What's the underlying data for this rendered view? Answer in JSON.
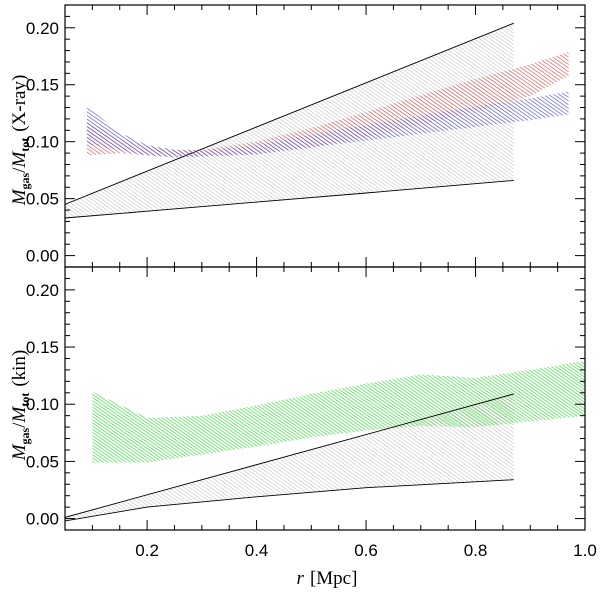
{
  "chart_data": {
    "type": "area",
    "xlabel_symbol": "r",
    "xlabel_unit": "[Mpc]",
    "xlim": [
      0.05,
      1.0
    ],
    "x_ticks": [
      "0.2",
      "0.4",
      "0.6",
      "0.8",
      "1.0"
    ],
    "x_tick_values": [
      0.2,
      0.4,
      0.6,
      0.8,
      1.0
    ],
    "panels": [
      {
        "id": "top",
        "ylabel_main": "M",
        "ylabel_sub_gas": "gas",
        "ylabel_slash": "/",
        "ylabel_sub_tot": "tot",
        "ylabel_suffix": "(X-ray)",
        "ylim": [
          -0.01,
          0.22
        ],
        "y_ticks": [
          "0.00",
          "0.05",
          "0.10",
          "0.15",
          "0.20"
        ],
        "y_tick_values": [
          0.0,
          0.05,
          0.1,
          0.15,
          0.2
        ],
        "series": [
          {
            "name": "gray-band",
            "color": "#9a9a9a",
            "x": [
              0.05,
              0.87
            ],
            "upper": [
              0.045,
              0.204
            ],
            "lower": [
              0.033,
              0.066
            ],
            "lower_curve": [
              [
                0.05,
                0.033
              ],
              [
                0.2,
                0.039
              ],
              [
                0.4,
                0.047
              ],
              [
                0.6,
                0.055
              ],
              [
                0.87,
                0.066
              ]
            ]
          },
          {
            "name": "red-band",
            "color": "#d84848",
            "x": [
              0.09,
              0.15,
              0.2,
              0.25,
              0.3,
              0.4,
              0.5,
              0.6,
              0.7,
              0.8,
              0.9,
              0.97
            ],
            "upper": [
              0.118,
              0.103,
              0.096,
              0.093,
              0.093,
              0.1,
              0.112,
              0.126,
              0.141,
              0.155,
              0.168,
              0.179
            ],
            "lower": [
              0.088,
              0.09,
              0.088,
              0.087,
              0.087,
              0.089,
              0.095,
              0.104,
              0.115,
              0.127,
              0.14,
              0.158
            ]
          },
          {
            "name": "blue-band",
            "color": "#4848d0",
            "x": [
              0.09,
              0.15,
              0.2,
              0.25,
              0.3,
              0.4,
              0.5,
              0.6,
              0.7,
              0.8,
              0.9,
              0.97
            ],
            "upper": [
              0.131,
              0.108,
              0.097,
              0.093,
              0.092,
              0.097,
              0.106,
              0.115,
              0.123,
              0.131,
              0.138,
              0.144
            ],
            "lower": [
              0.098,
              0.093,
              0.088,
              0.086,
              0.087,
              0.089,
              0.095,
              0.101,
              0.107,
              0.113,
              0.119,
              0.124
            ]
          }
        ]
      },
      {
        "id": "bottom",
        "ylabel_main": "M",
        "ylabel_sub_gas": "gas",
        "ylabel_slash": "/",
        "ylabel_sub_tot": "tot",
        "ylabel_suffix": "(kin)",
        "ylim": [
          -0.01,
          0.22
        ],
        "y_ticks": [
          "0.00",
          "0.05",
          "0.10",
          "0.15",
          "0.20"
        ],
        "y_tick_values": [
          0.0,
          0.05,
          0.1,
          0.15,
          0.2
        ],
        "series": [
          {
            "name": "green-band",
            "color": "#5fe35f",
            "x": [
              0.1,
              0.2,
              0.3,
              0.4,
              0.5,
              0.6,
              0.7,
              0.8,
              0.9,
              1.0
            ],
            "upper": [
              0.111,
              0.088,
              0.09,
              0.099,
              0.109,
              0.118,
              0.126,
              0.123,
              0.13,
              0.138
            ],
            "lower": [
              0.049,
              0.049,
              0.056,
              0.063,
              0.071,
              0.077,
              0.081,
              0.08,
              0.085,
              0.09
            ]
          },
          {
            "name": "gray-band",
            "color": "#9a9a9a",
            "x": [
              0.05,
              0.87
            ],
            "upper": [
              0.001,
              0.109
            ],
            "lower": [
              -0.002,
              0.034
            ],
            "lower_curve": [
              [
                0.05,
                -0.002
              ],
              [
                0.2,
                0.01
              ],
              [
                0.4,
                0.019
              ],
              [
                0.6,
                0.027
              ],
              [
                0.87,
                0.034
              ]
            ]
          }
        ]
      }
    ]
  }
}
